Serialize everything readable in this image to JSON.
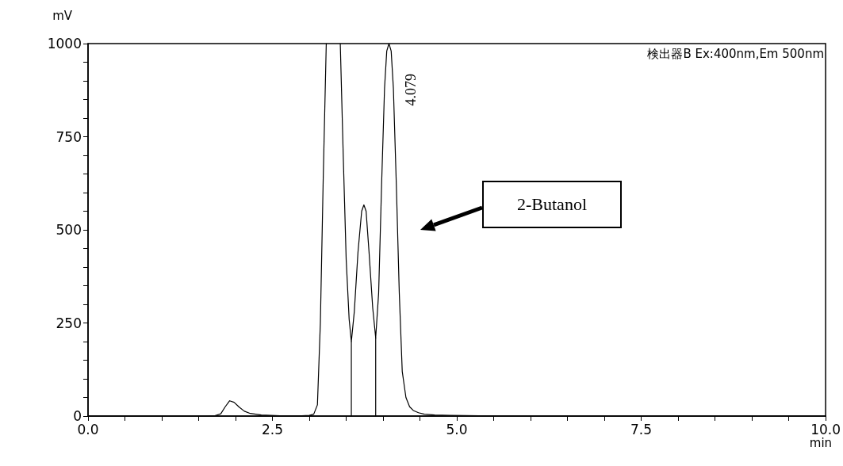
{
  "chart_data": {
    "type": "line",
    "xlabel": "min",
    "ylabel": "mV",
    "series": [
      {
        "color": "#000000",
        "x": [
          0,
          1.0,
          1.6,
          1.72,
          1.8,
          1.86,
          1.92,
          1.98,
          2.05,
          2.12,
          2.2,
          2.35,
          2.6,
          2.9,
          3.0,
          3.06,
          3.11,
          3.15,
          3.19,
          3.23,
          3.33,
          3.42,
          3.46,
          3.5,
          3.54,
          3.57,
          3.61,
          3.66,
          3.71,
          3.74,
          3.77,
          3.81,
          3.86,
          3.9,
          3.94,
          3.98,
          4.02,
          4.05,
          4.08,
          4.11,
          4.14,
          4.18,
          4.22,
          4.26,
          4.31,
          4.36,
          4.41,
          4.48,
          4.56,
          4.7,
          4.9,
          5.3,
          6.0,
          8.0,
          10.0
        ],
        "values": [
          0,
          0,
          0,
          1,
          6,
          25,
          41,
          37,
          24,
          13,
          7,
          3,
          1,
          1,
          2,
          5,
          30,
          250,
          650,
          1000,
          null,
          1000,
          700,
          420,
          260,
          200,
          280,
          440,
          550,
          567,
          550,
          440,
          290,
          210,
          330,
          620,
          880,
          980,
          1000,
          980,
          880,
          620,
          330,
          120,
          50,
          25,
          15,
          9,
          5,
          3,
          2,
          1,
          0,
          0,
          0
        ]
      },
      {
        "color": "#000000",
        "x": [
          3.57,
          3.57
        ],
        "values": [
          0,
          200
        ]
      },
      {
        "color": "#000000",
        "x": [
          3.9,
          3.9
        ],
        "values": [
          0,
          210
        ]
      }
    ],
    "xlim": [
      0,
      10
    ],
    "ylim": [
      0,
      1000
    ],
    "xticks": [
      {
        "value": 0,
        "label": "0.0"
      },
      {
        "value": 0.5,
        "label": null
      },
      {
        "value": 1,
        "label": null
      },
      {
        "value": 1.5,
        "label": null
      },
      {
        "value": 2,
        "label": null
      },
      {
        "value": 2.5,
        "label": "2.5"
      },
      {
        "value": 3,
        "label": null
      },
      {
        "value": 3.5,
        "label": null
      },
      {
        "value": 4,
        "label": null
      },
      {
        "value": 4.5,
        "label": null
      },
      {
        "value": 5,
        "label": "5.0"
      },
      {
        "value": 5.5,
        "label": null
      },
      {
        "value": 6,
        "label": null
      },
      {
        "value": 6.5,
        "label": null
      },
      {
        "value": 7,
        "label": null
      },
      {
        "value": 7.5,
        "label": "7.5"
      },
      {
        "value": 8,
        "label": null
      },
      {
        "value": 8.5,
        "label": null
      },
      {
        "value": 9,
        "label": null
      },
      {
        "value": 9.5,
        "label": null
      },
      {
        "value": 10,
        "label": "10.0"
      }
    ],
    "yticks": [
      0,
      {
        "value": 50,
        "label": null
      },
      {
        "value": 100,
        "label": null
      },
      {
        "value": 150,
        "label": null
      },
      {
        "value": 200,
        "label": null
      },
      250,
      {
        "value": 300,
        "label": null
      },
      {
        "value": 350,
        "label": null
      },
      {
        "value": 400,
        "label": null
      },
      {
        "value": 450,
        "label": null
      },
      500,
      {
        "value": 550,
        "label": null
      },
      {
        "value": 600,
        "label": null
      },
      {
        "value": 650,
        "label": null
      },
      {
        "value": 700,
        "label": null
      },
      750,
      {
        "value": 800,
        "label": null
      },
      {
        "value": 850,
        "label": null
      },
      {
        "value": 900,
        "label": null
      },
      {
        "value": 950,
        "label": null
      },
      1000
    ],
    "marker": "none",
    "line_style": "solid",
    "annotations": [
      {
        "text": "4.079",
        "x": 4.079,
        "y": 1000
      },
      "2-Butanol",
      "検出器B Ex:400nm,Em 500nm"
    ]
  }
}
